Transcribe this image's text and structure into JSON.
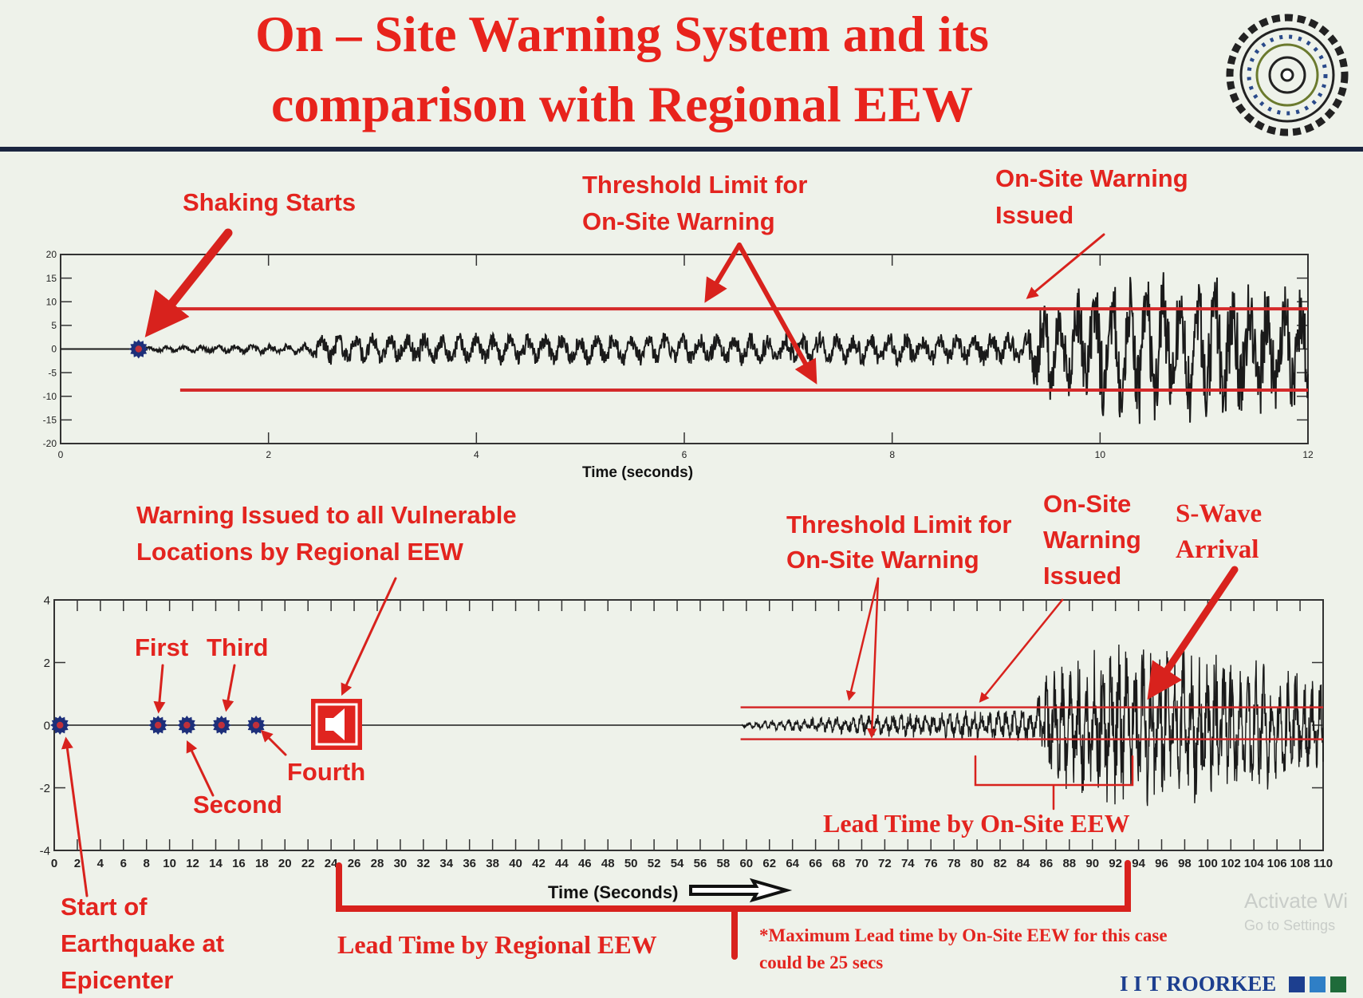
{
  "slide": {
    "title_line1": "On – Site Warning System and its",
    "title_line2": "comparison with Regional EEW",
    "logo_text": "INDIAN INSTITUTE OF TECHNOLOGY ROORKEE",
    "footer_brand": "I I T ROORKEE",
    "footer_squares": [
      "#1d3f8f",
      "#2f7fc6",
      "#1f6b3a"
    ],
    "accent_color": "#e3241f",
    "watermark_line1": "Activate Wi",
    "watermark_line2": "Go to Settings"
  },
  "top_annotations": {
    "shaking_starts": "Shaking Starts",
    "threshold_line1": "Threshold Limit for",
    "threshold_line2": "On-Site Warning",
    "onsite_line1": "On-Site Warning",
    "onsite_line2": "Issued"
  },
  "bottom_annotations": {
    "regional_line1": "Warning Issued to all Vulnerable",
    "regional_line2": "Locations by Regional EEW",
    "threshold_line1": "Threshold Limit for",
    "threshold_line2": "On-Site Warning",
    "onsite_line1": "On-Site",
    "onsite_line2": "Warning",
    "onsite_line3": "Issued",
    "swave_line1": "S-Wave",
    "swave_line2": "Arrival",
    "first": "First",
    "second": "Second",
    "third": "Third",
    "fourth": "Fourth",
    "start_line1": "Start of",
    "start_line2": "Earthquake at",
    "start_line3": "Epicenter",
    "lead_onsite": "Lead Time by On-Site EEW",
    "lead_regional": "Lead Time by Regional EEW",
    "note_line1": "*Maximum Lead time by On-Site EEW for this case",
    "note_line2": "could be 25 secs"
  },
  "chart_data": [
    {
      "type": "line",
      "xlabel": "Time (seconds)",
      "ylabel": "",
      "xlim": [
        0,
        12
      ],
      "ylim": [
        -20,
        20
      ],
      "xticks": [
        0,
        2,
        4,
        6,
        8,
        10,
        12
      ],
      "yticks": [
        20,
        15,
        10,
        5,
        0,
        -5,
        -10,
        -15,
        -20
      ],
      "grid": false,
      "line_color": "#1a1a1a",
      "threshold_color": "#d42a2a",
      "thresholds": [
        {
          "y": 8.5,
          "x_from": 1.1,
          "x_to": 12
        },
        {
          "y": -8.7,
          "x_from": 1.15,
          "x_to": 12
        }
      ],
      "onset_marker_x": 0.75,
      "onsite_warning_x": 9.35,
      "amplitude_envelope": [
        [
          0,
          0
        ],
        [
          0.75,
          0
        ],
        [
          0.8,
          0.5
        ],
        [
          2.4,
          1.2
        ],
        [
          2.5,
          3
        ],
        [
          9.3,
          3.2
        ],
        [
          9.4,
          9
        ],
        [
          10.5,
          15
        ],
        [
          12,
          12
        ]
      ]
    },
    {
      "type": "line",
      "xlabel": "Time (Seconds)",
      "ylabel": "",
      "xlim": [
        0,
        110
      ],
      "ylim": [
        -4,
        4
      ],
      "xticks": [
        0,
        2,
        4,
        6,
        8,
        10,
        12,
        14,
        16,
        18,
        20,
        22,
        24,
        26,
        28,
        30,
        32,
        34,
        36,
        38,
        40,
        42,
        44,
        46,
        48,
        50,
        52,
        54,
        56,
        58,
        60,
        62,
        64,
        66,
        68,
        70,
        72,
        74,
        76,
        78,
        80,
        82,
        84,
        86,
        88,
        90,
        92,
        94,
        96,
        98,
        100,
        102,
        104,
        106,
        108,
        110
      ],
      "yticks": [
        4,
        2,
        0,
        -2,
        -4
      ],
      "grid": false,
      "line_color": "#1a1a1a",
      "threshold_color": "#d42a2a",
      "thresholds": [
        {
          "y": 0.57,
          "x_from": 59.5,
          "x_to": 110
        },
        {
          "y": -0.45,
          "x_from": 59.5,
          "x_to": 110
        }
      ],
      "station_markers_x": [
        0.5,
        9,
        11.5,
        14.5,
        17.5
      ],
      "regional_warning_x": 24.5,
      "onsite_warning_x": 80,
      "swave_arrival_x": 94,
      "lead_time_regional_range": [
        24,
        92
      ],
      "lead_time_onsite_range": [
        80,
        94
      ],
      "amplitude_envelope": [
        [
          0,
          0
        ],
        [
          59.5,
          0
        ],
        [
          60,
          0.1
        ],
        [
          70,
          0.3
        ],
        [
          85,
          0.5
        ],
        [
          86,
          1.6
        ],
        [
          92,
          2.4
        ],
        [
          100,
          2.2
        ],
        [
          110,
          1.5
        ]
      ]
    }
  ]
}
